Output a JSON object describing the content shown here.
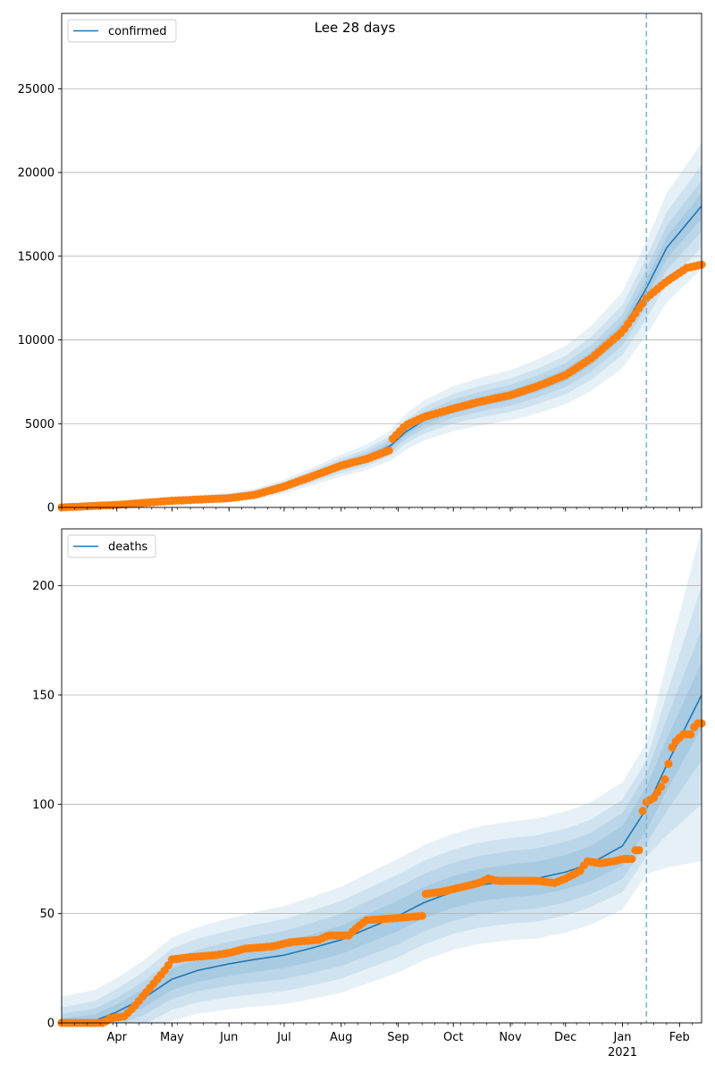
{
  "figure_title": "Lee 28 days",
  "chart_data": [
    {
      "type": "line",
      "legend": [
        "confirmed"
      ],
      "legend_position": "upper-left",
      "grid": "horizontal",
      "ylim": [
        0,
        29500
      ],
      "yticks": [
        0,
        5000,
        10000,
        15000,
        20000,
        25000
      ],
      "xlim": [
        "2020-03-02",
        "2021-02-13"
      ],
      "forecast_start": "2021-01-14",
      "series_colors": {
        "model": "#1f77b4",
        "observed": "#ff7f0e",
        "band": "#1f77b4",
        "divider": "#7eb3d6"
      },
      "model": [
        [
          "2020-03-02",
          0
        ],
        [
          "2020-04-01",
          150
        ],
        [
          "2020-05-01",
          380
        ],
        [
          "2020-06-01",
          600
        ],
        [
          "2020-06-15",
          800
        ],
        [
          "2020-07-01",
          1250
        ],
        [
          "2020-07-15",
          1800
        ],
        [
          "2020-08-01",
          2500
        ],
        [
          "2020-08-15",
          3000
        ],
        [
          "2020-08-28",
          3700
        ],
        [
          "2020-09-05",
          4500
        ],
        [
          "2020-09-15",
          5200
        ],
        [
          "2020-10-01",
          5900
        ],
        [
          "2020-10-15",
          6300
        ],
        [
          "2020-11-01",
          6700
        ],
        [
          "2020-11-15",
          7200
        ],
        [
          "2020-12-01",
          7900
        ],
        [
          "2020-12-15",
          8900
        ],
        [
          "2021-01-01",
          10600
        ],
        [
          "2021-01-14",
          13100
        ],
        [
          "2021-01-25",
          15500
        ],
        [
          "2021-02-13",
          18000
        ]
      ],
      "band_rel_width": [
        0.04,
        0.08,
        0.13,
        0.2
      ],
      "observed": [
        [
          "2020-03-02",
          0
        ],
        [
          "2020-04-01",
          150
        ],
        [
          "2020-05-01",
          400
        ],
        [
          "2020-06-01",
          550
        ],
        [
          "2020-06-15",
          750
        ],
        [
          "2020-07-01",
          1250
        ],
        [
          "2020-07-15",
          1800
        ],
        [
          "2020-08-01",
          2500
        ],
        [
          "2020-08-15",
          2900
        ],
        [
          "2020-08-27",
          3400
        ],
        [
          "2020-08-29",
          4100
        ],
        [
          "2020-09-05",
          4900
        ],
        [
          "2020-09-15",
          5400
        ],
        [
          "2020-10-01",
          5900
        ],
        [
          "2020-10-15",
          6300
        ],
        [
          "2020-11-01",
          6700
        ],
        [
          "2020-11-15",
          7200
        ],
        [
          "2020-12-01",
          7900
        ],
        [
          "2020-12-15",
          8900
        ],
        [
          "2021-01-01",
          10500
        ],
        [
          "2021-01-14",
          12500
        ],
        [
          "2021-01-25",
          13500
        ],
        [
          "2021-02-05",
          14300
        ],
        [
          "2021-02-13",
          14500
        ]
      ]
    },
    {
      "type": "line",
      "legend": [
        "deaths"
      ],
      "legend_position": "upper-left",
      "grid": "horizontal",
      "ylim": [
        0,
        226
      ],
      "yticks": [
        0,
        50,
        100,
        150,
        200
      ],
      "xlim": [
        "2020-03-02",
        "2021-02-13"
      ],
      "xticks": [
        "Apr",
        "May",
        "Jun",
        "Jul",
        "Aug",
        "Sep",
        "Oct",
        "Nov",
        "Dec",
        "Jan",
        "Feb"
      ],
      "xtick_dates": [
        "2020-04-01",
        "2020-05-01",
        "2020-06-01",
        "2020-07-01",
        "2020-08-01",
        "2020-09-01",
        "2020-10-01",
        "2020-11-01",
        "2020-12-01",
        "2021-01-01",
        "2021-02-01"
      ],
      "year_label": "2021",
      "forecast_start": "2021-01-14",
      "model": [
        [
          "2020-03-02",
          0
        ],
        [
          "2020-03-20",
          1
        ],
        [
          "2020-04-01",
          5
        ],
        [
          "2020-04-15",
          11
        ],
        [
          "2020-05-01",
          20
        ],
        [
          "2020-05-15",
          24
        ],
        [
          "2020-06-01",
          27
        ],
        [
          "2020-06-15",
          29
        ],
        [
          "2020-07-01",
          31
        ],
        [
          "2020-07-15",
          34
        ],
        [
          "2020-08-01",
          38
        ],
        [
          "2020-08-15",
          43
        ],
        [
          "2020-09-01",
          49
        ],
        [
          "2020-09-15",
          55
        ],
        [
          "2020-10-01",
          60
        ],
        [
          "2020-10-15",
          63
        ],
        [
          "2020-11-01",
          65
        ],
        [
          "2020-11-15",
          66
        ],
        [
          "2020-12-01",
          69
        ],
        [
          "2020-12-15",
          73
        ],
        [
          "2021-01-01",
          81
        ],
        [
          "2021-01-14",
          98
        ],
        [
          "2021-01-25",
          118
        ],
        [
          "2021-02-13",
          150
        ]
      ],
      "band_offsets": [
        [
          [
            "2020-03-02",
            2
          ],
          [
            "2020-05-01",
            5
          ],
          [
            "2020-09-01",
            7
          ],
          [
            "2020-12-15",
            8
          ],
          [
            "2021-01-14",
            10
          ],
          [
            "2021-02-13",
            15
          ]
        ],
        [
          [
            "2020-03-02",
            4
          ],
          [
            "2020-05-01",
            9
          ],
          [
            "2020-09-01",
            13
          ],
          [
            "2020-12-15",
            14
          ],
          [
            "2021-01-14",
            16
          ],
          [
            "2021-02-13",
            30
          ]
        ],
        [
          [
            "2020-03-02",
            7
          ],
          [
            "2020-05-01",
            14
          ],
          [
            "2020-09-01",
            19
          ],
          [
            "2020-12-15",
            20
          ],
          [
            "2021-01-14",
            22
          ],
          [
            "2021-02-13",
            50
          ]
        ],
        [
          [
            "2020-03-02",
            12
          ],
          [
            "2020-05-01",
            19
          ],
          [
            "2020-09-01",
            26
          ],
          [
            "2020-12-15",
            28
          ],
          [
            "2021-01-14",
            30
          ],
          [
            "2021-02-13",
            76
          ]
        ]
      ],
      "observed": [
        [
          "2020-03-02",
          0
        ],
        [
          "2020-03-25",
          0
        ],
        [
          "2020-03-28",
          2
        ],
        [
          "2020-04-05",
          3
        ],
        [
          "2020-04-10",
          7
        ],
        [
          "2020-04-15",
          12
        ],
        [
          "2020-04-22",
          19
        ],
        [
          "2020-04-28",
          25
        ],
        [
          "2020-05-01",
          29
        ],
        [
          "2020-05-10",
          30
        ],
        [
          "2020-05-25",
          31
        ],
        [
          "2020-06-01",
          32
        ],
        [
          "2020-06-10",
          34
        ],
        [
          "2020-06-25",
          35
        ],
        [
          "2020-07-05",
          37
        ],
        [
          "2020-07-20",
          38
        ],
        [
          "2020-07-25",
          40
        ],
        [
          "2020-08-05",
          40
        ],
        [
          "2020-08-10",
          44
        ],
        [
          "2020-08-15",
          47
        ],
        [
          "2020-09-01",
          48
        ],
        [
          "2020-09-15",
          49
        ],
        [
          "2020-09-16",
          59
        ],
        [
          "2020-09-25",
          60
        ],
        [
          "2020-10-05",
          62
        ],
        [
          "2020-10-15",
          64
        ],
        [
          "2020-10-20",
          66
        ],
        [
          "2020-10-25",
          65
        ],
        [
          "2020-11-15",
          65
        ],
        [
          "2020-11-25",
          64
        ],
        [
          "2020-12-01",
          66
        ],
        [
          "2020-12-10",
          70
        ],
        [
          "2020-12-12",
          74
        ],
        [
          "2020-12-20",
          73
        ],
        [
          "2020-12-28",
          74
        ],
        [
          "2021-01-01",
          75
        ],
        [
          "2021-01-06",
          75
        ],
        [
          "2021-01-07",
          79
        ],
        [
          "2021-01-10",
          79
        ],
        [
          "2021-01-11",
          87
        ],
        [
          "2021-01-12",
          97
        ],
        [
          "2021-01-14",
          101
        ],
        [
          "2021-01-18",
          103
        ],
        [
          "2021-01-22",
          108
        ],
        [
          "2021-01-25",
          113
        ],
        [
          "2021-01-27",
          124
        ],
        [
          "2021-01-29",
          128
        ],
        [
          "2021-02-03",
          132
        ],
        [
          "2021-02-07",
          132
        ],
        [
          "2021-02-10",
          137
        ],
        [
          "2021-02-13",
          137
        ]
      ]
    }
  ]
}
